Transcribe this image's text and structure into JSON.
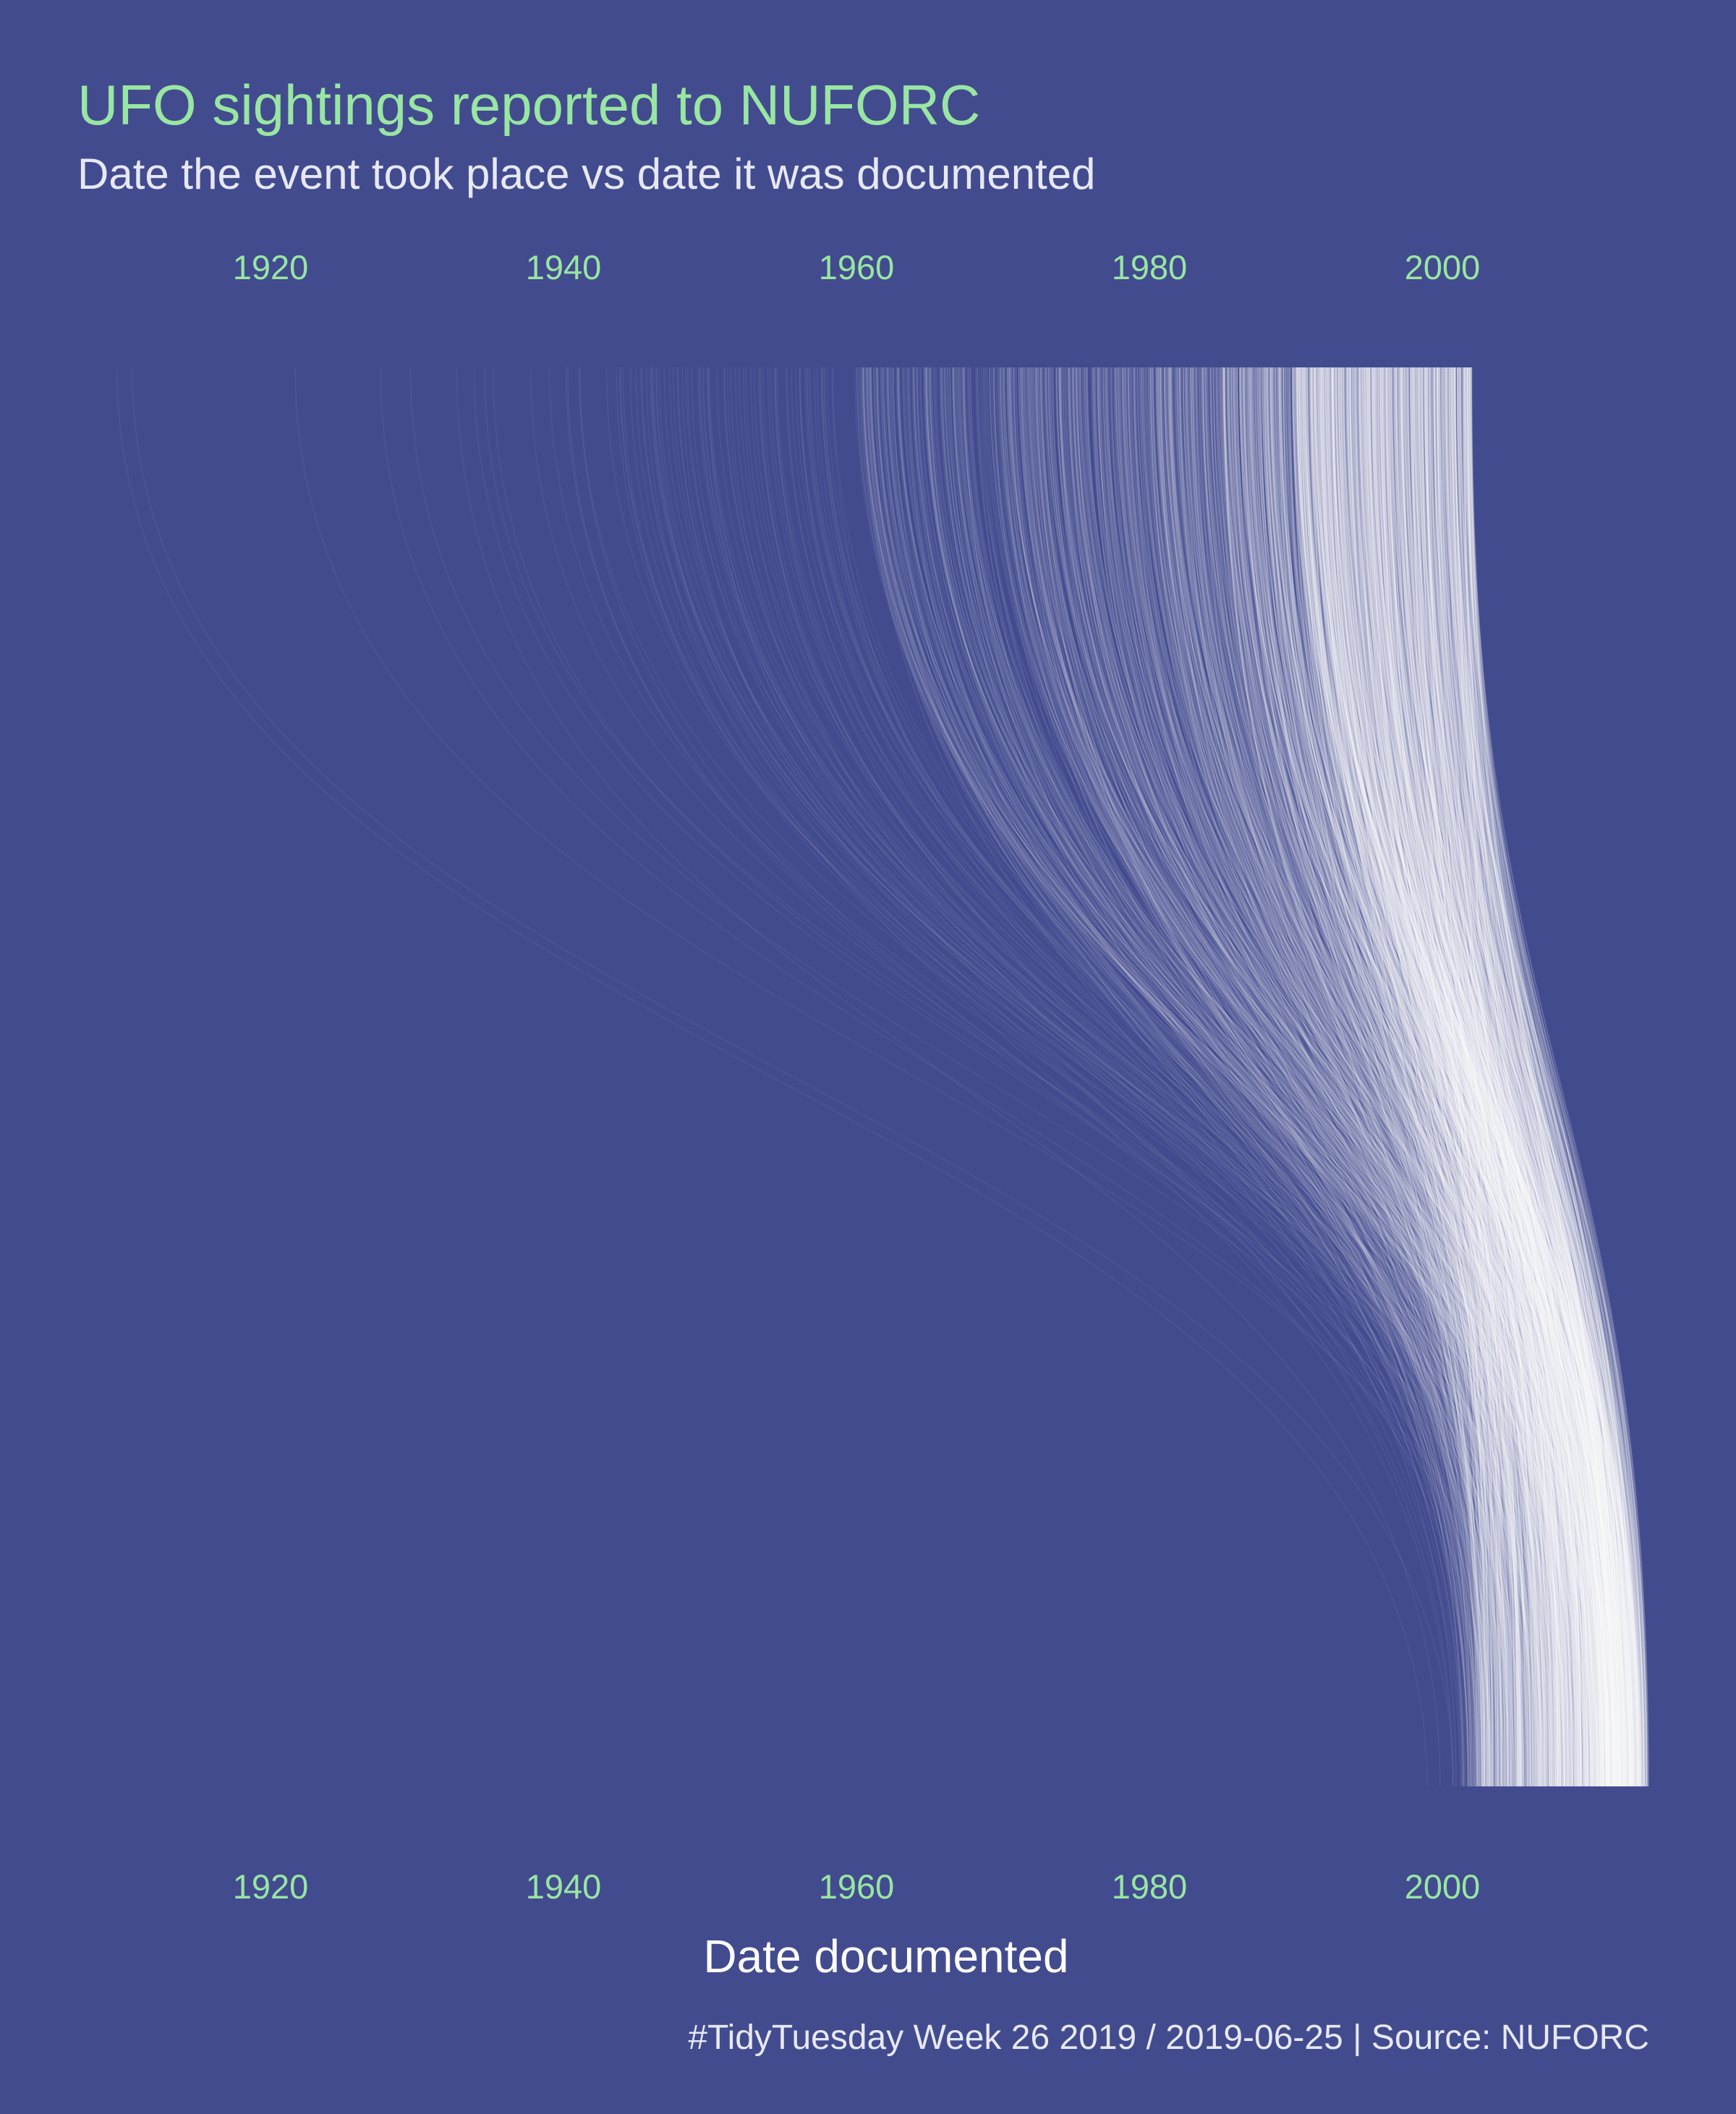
{
  "title": "UFO sightings reported to NUFORC",
  "subtitle": "Date the event took place vs date it was documented",
  "caption": "#TidyTuesday Week 26 2019 / 2019-06-25 | Source: NUFORC",
  "colors": {
    "background": "#434b8f",
    "title": "#98e6a2",
    "tick": "#98e6a2",
    "lines": "#ffffff"
  },
  "chart_data": {
    "type": "line",
    "description_mode": "parallel-sets: each line connects the date an event took place (top axis) to the date it was documented (bottom axis)",
    "xlabel": "Date documented",
    "top_axis": {
      "ticks": [
        1920,
        1940,
        1960,
        1980,
        2000
      ],
      "range": [
        1906.7,
        2001.8
      ]
    },
    "bottom_axis": {
      "ticks": [
        1920,
        1940,
        1960,
        1980,
        2000
      ],
      "range": [
        1996,
        2014.2
      ]
    },
    "grid": false,
    "legend": "none",
    "event_year_distribution": [
      {
        "from": 1906,
        "to": 1930,
        "relative_count": 1
      },
      {
        "from": 1930,
        "to": 1945,
        "relative_count": 3
      },
      {
        "from": 1945,
        "to": 1960,
        "relative_count": 15
      },
      {
        "from": 1960,
        "to": 1970,
        "relative_count": 40
      },
      {
        "from": 1970,
        "to": 1980,
        "relative_count": 70
      },
      {
        "from": 1980,
        "to": 1990,
        "relative_count": 120
      },
      {
        "from": 1990,
        "to": 2002,
        "relative_count": 300
      }
    ],
    "documented_year_distribution": [
      {
        "from": 1998,
        "to": 2004,
        "relative_count": 100
      },
      {
        "from": 2004,
        "to": 2010,
        "relative_count": 160
      },
      {
        "from": 2010,
        "to": 2014.2,
        "relative_count": 200
      }
    ]
  }
}
